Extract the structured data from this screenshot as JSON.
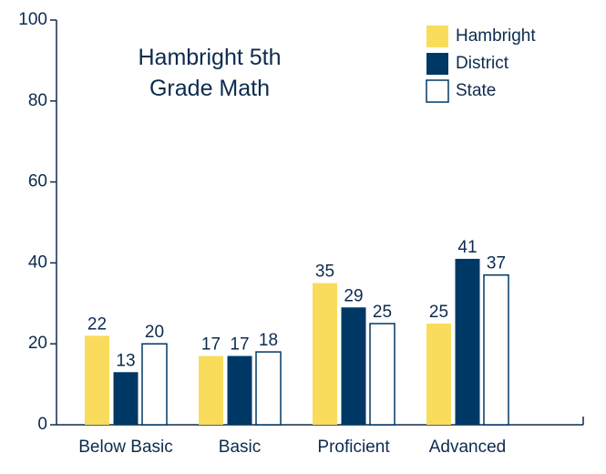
{
  "chart_data": {
    "type": "bar",
    "title": "Hambright 5th Grade Math",
    "categories": [
      "Below Basic",
      "Basic",
      "Proficient",
      "Advanced"
    ],
    "series": [
      {
        "name": "Hambright",
        "color": "#f9dc5c",
        "values": [
          22,
          17,
          35,
          25
        ]
      },
      {
        "name": "District",
        "color": "#003865",
        "values": [
          13,
          17,
          29,
          41
        ]
      },
      {
        "name": "State",
        "color": "#ffffff",
        "values": [
          20,
          18,
          25,
          37
        ]
      }
    ],
    "ylim": [
      0,
      100
    ],
    "yticks": [
      0,
      20,
      40,
      60,
      80,
      100
    ],
    "legend": "upper right"
  }
}
